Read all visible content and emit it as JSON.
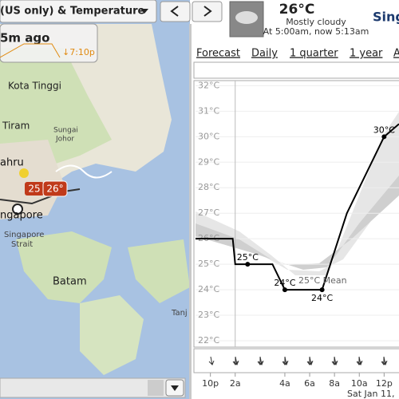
{
  "toolbar": {
    "layer_select": "(US only) & Temperature"
  },
  "conditions": {
    "temperature": "26°C",
    "description": "Mostly cloudy",
    "observed": "At 5:00am, now 5:13am",
    "location": "Sing"
  },
  "map": {
    "age": "5m ago",
    "time": "↓7:10p",
    "labels": [
      "Kota Tinggi",
      "Tiram",
      "Sungai",
      "Johor",
      "ahru",
      "ngapore",
      "Singapore",
      "Strait",
      "Batam",
      "Tanj"
    ],
    "station": [
      "25",
      "26°"
    ]
  },
  "tabs": [
    "Forecast",
    "Daily",
    "1 quarter",
    "1 year",
    "A"
  ],
  "chart_data": {
    "type": "line",
    "x": [
      -3.2,
      -0.2,
      0,
      1,
      3,
      4,
      7,
      9,
      12,
      13.2
    ],
    "series": [
      {
        "color": "#000000",
        "values": [
          26,
          26,
          25,
          25,
          25,
          24,
          24,
          27,
          30,
          30.5
        ],
        "value_labels": [
          null,
          null,
          null,
          "25°C",
          null,
          "24°C",
          "24°C",
          null,
          "30°C",
          null
        ]
      }
    ],
    "xlim": [
      -3.2,
      13.2
    ],
    "ylim": [
      21.75,
      32.2
    ],
    "yticks": [
      {
        "value": 22,
        "label": "22°C"
      },
      {
        "value": 23,
        "label": "23°C"
      },
      {
        "value": 24,
        "label": "24°C"
      },
      {
        "value": 25,
        "label": "25°C"
      },
      {
        "value": 26,
        "label": "26°C"
      },
      {
        "value": 27,
        "label": "27°C"
      },
      {
        "value": 28,
        "label": "28°C"
      },
      {
        "value": 29,
        "label": "29°C"
      },
      {
        "value": 30,
        "label": "30°C"
      },
      {
        "value": 31,
        "label": "31°C"
      },
      {
        "value": 32,
        "label": "32°C"
      }
    ],
    "xticks": [
      {
        "value": -2,
        "label": "10p"
      },
      {
        "value": 0,
        "label": "2a"
      },
      {
        "value": 4,
        "label": "4a"
      },
      {
        "value": 6,
        "label": "6a"
      },
      {
        "value": 8,
        "label": "8a"
      },
      {
        "value": 10,
        "label": "10a"
      },
      {
        "value": 12,
        "label": "12p"
      }
    ],
    "annotation": "25°C Mean",
    "date_label": "Sat Jan 11,"
  }
}
